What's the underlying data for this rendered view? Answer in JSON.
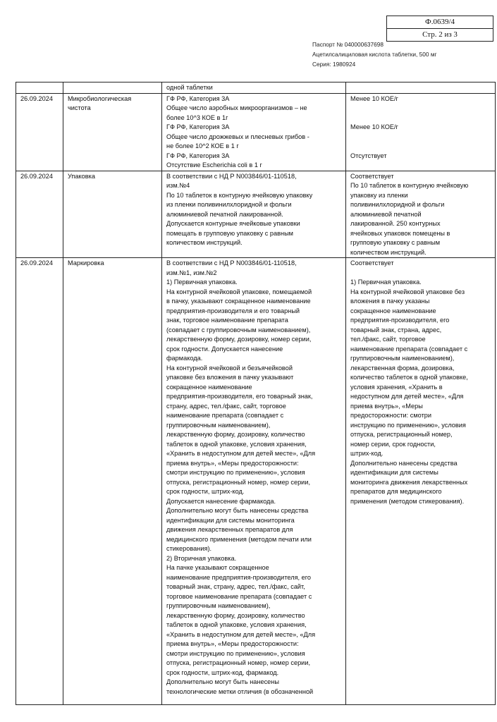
{
  "form": {
    "code": "Ф.0639/4",
    "page": "Стр. 2 из 3"
  },
  "passport": {
    "number": "Паспорт № 040000637698",
    "product": "Ацетилсалициловая кислота таблетки, 500 мг",
    "series": "Серия: 1980924"
  },
  "rows": [
    {
      "date": [],
      "indicator": [],
      "norm": [
        "одной таблетки"
      ],
      "result": []
    },
    {
      "date": [
        "26.09.2024"
      ],
      "indicator": [
        "Микробиологическая",
        "чистота"
      ],
      "norm": [
        "ГФ РФ, Категория 3А",
        "Общее число аэробных микроорганизмов – не",
        "более 10^3 КОЕ в 1г",
        "ГФ РФ, Категория 3А",
        "Общее число дрожжевых и плесневых  грибов -",
        "не более 10^2 КОЕ в 1 г",
        "ГФ РФ, Категория 3А",
        "Отсутствие Escherichia coli  в 1 г"
      ],
      "result": [
        "Менее 10 КОЕ/г",
        "",
        "",
        "Менее 10 КОЕ/г",
        "",
        "",
        "Отсутствует"
      ]
    },
    {
      "date": [
        "26.09.2024"
      ],
      "indicator": [
        "Упаковка"
      ],
      "norm": [
        "В соответствии с НД Р N003846/01-110518,",
        "изм.№4",
        "По 10 таблеток в контурную ячейковую упаковку",
        "из пленки поливинилхлоридной и фольги",
        "алюминиевой печатной лакированной.",
        "Допускается контурные ячейковые упаковки",
        "помещать в групповую упаковку с равным",
        "количеством инструкций."
      ],
      "result": [
        "Соответствует",
        "По 10 таблеток в контурную ячейковую",
        "упаковку из пленки",
        "поливинилхлоридной и фольги",
        "алюминиевой печатной",
        "лакированной. 250 контурных",
        "ячейковых упаковок помещены в",
        "групповую упаковку с равным",
        "количеством инструкций."
      ]
    },
    {
      "date": [
        "26.09.2024"
      ],
      "indicator": [
        "Маркировка"
      ],
      "norm": [
        "В соответствии с НД Р N003846/01-110518,",
        "изм.№1, изм.№2",
        "1) Первичная упаковка.",
        "На контурной ячейковой упаковке, помещаемой",
        "в пачку, указывают сокращенное наименование",
        "предприятия-производителя и его товарный",
        "знак, торговое наименование препарата",
        "(совпадает с группировочным наименованием),",
        "лекарственную форму, дозировку, номер серии,",
        "срок годности. Допускается нанесение",
        "фармакода.",
        "На контурной ячейковой и безъячейковой",
        "упаковке без вложения в пачку указывают",
        "сокращенное наименование",
        "предприятия-производителя, его товарный знак,",
        "страну, адрес, тел./факс, сайт, торговое",
        "наименование препарата (совпадает с",
        "группировочным наименованием),",
        "лекарственную форму, дозировку, количество",
        "таблеток в одной упаковке, условия хранения,",
        "«Хранить в недоступном для детей месте», «Для",
        "приема внутрь», «Меры предосторожности:",
        "смотри инструкцию по применению», условия",
        "отпуска, регистрационный номер, номер серии,",
        "срок годности, штрих-код.",
        "Допускается нанесение фармакода.",
        "Дополнительно могут быть нанесены средства",
        "идентификации для системы мониторинга",
        "движения лекарственных препаратов для",
        "медицинского применения (методом печати или",
        "стикерования).",
        "2) Вторичная упаковка.",
        "На пачке указывают сокращенное",
        "наименование предприятия-производителя, его",
        "товарный знак, страну, адрес, тел./факс, сайт,",
        "торговое наименование препарата (совпадает с",
        "группировочным наименованием),",
        "лекарственную форму, дозировку, количество",
        "таблеток в одной упаковке, условия хранения,",
        "«Хранить в недоступном для детей месте», «Для",
        "приема внутрь», «Меры предосторожности:",
        "смотри инструкцию по применению», условия",
        "отпуска, регистрационный номер, номер серии,",
        "срок годности, штрих-код, фармакод.",
        "Дополнительно могут быть нанесены",
        "технологические метки отличия (в обозначенной"
      ],
      "result": [
        "Соответствует",
        "",
        "1) Первичная упаковка.",
        "На контурной ячейковой упаковке без",
        "вложения в пачку указаны",
        "сокращенное наименование",
        "предприятия-производителя, его",
        "товарный знак, страна, адрес,",
        "тел./факс, сайт, торговое",
        "наименование препарата (совпадает с",
        "группировочным наименованием),",
        "лекарственная форма, дозировка,",
        "количество таблеток в одной упаковке,",
        "условия хранения, «Хранить в",
        "недоступном для детей месте», «Для",
        "приема внутрь», «Меры",
        "предосторожности: смотри",
        "инструкцию по применению», условия",
        "отпуска, регистрационный номер,",
        "номер серии, срок годности,",
        "штрих-код.",
        "Дополнительно нанесены средства",
        "идентификации для системы",
        "мониторинга движения лекарственных",
        "препаратов для медицинского",
        "применения (методом стикерования)."
      ]
    }
  ]
}
